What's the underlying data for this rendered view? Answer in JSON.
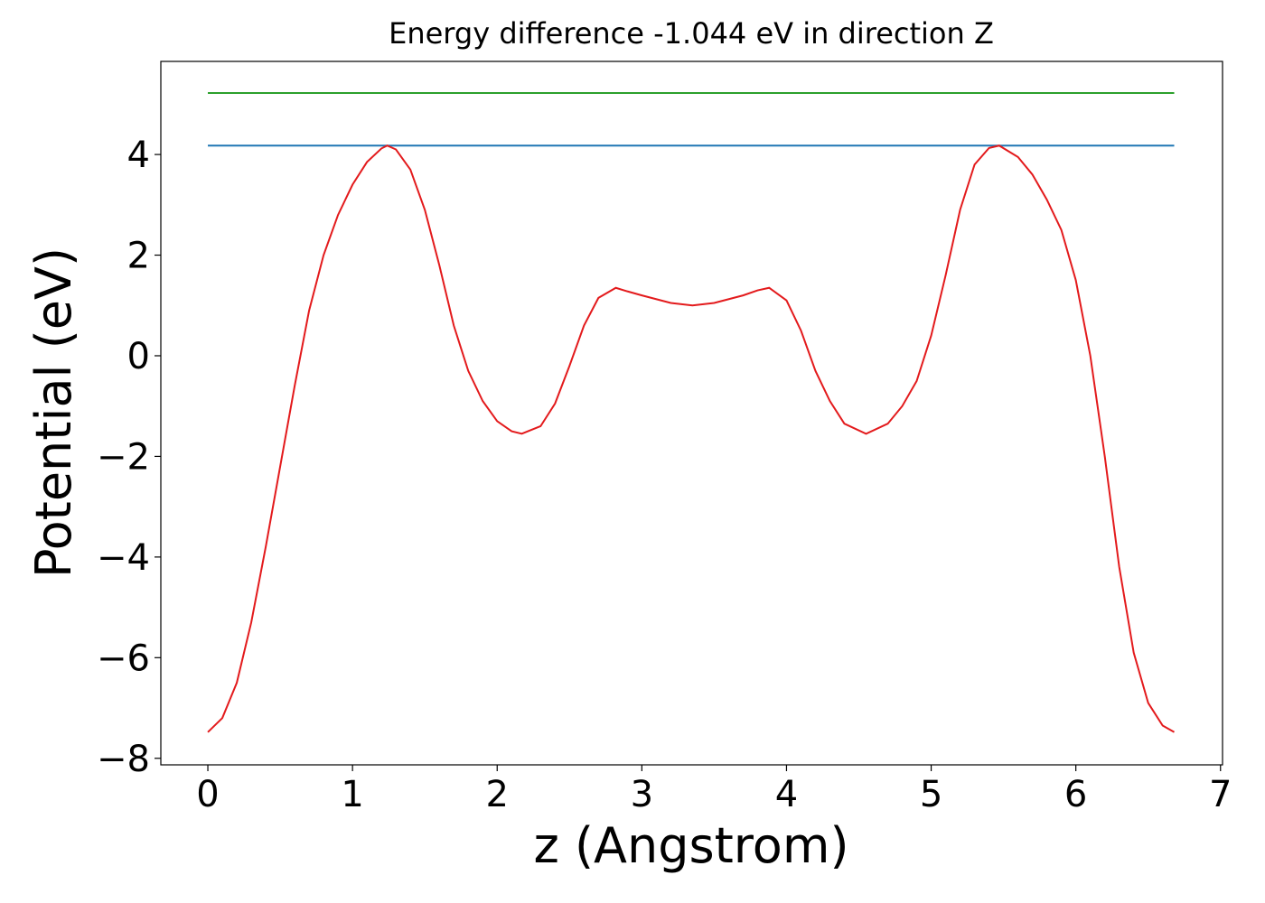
{
  "chart_data": {
    "type": "line",
    "title": "Energy difference -1.044 eV in direction Z",
    "x_label": "z (Angstrom)",
    "y_label": "Potential (eV)",
    "xlim": [
      -0.325,
      7.014
    ],
    "ylim": [
      -8.13,
      5.85
    ],
    "xticks": [
      0,
      1,
      2,
      3,
      4,
      5,
      6,
      7
    ],
    "yticks": [
      {
        "value": -8,
        "label": "−8"
      },
      {
        "value": -6,
        "label": "−6"
      },
      {
        "value": -4,
        "label": "−4"
      },
      {
        "value": -2,
        "label": "−2"
      },
      0,
      2,
      4
    ],
    "series": [
      {
        "color": "#1f77b4",
        "x": [
          0,
          6.68
        ],
        "values": [
          4.177,
          4.177
        ]
      },
      {
        "color": "#2ca02c",
        "x": [
          0,
          6.68
        ],
        "values": [
          5.221,
          5.221
        ]
      },
      {
        "color": "#e31a1c",
        "x": [
          0,
          0.1,
          0.2,
          0.3,
          0.4,
          0.5,
          0.6,
          0.7,
          0.8,
          0.9,
          1.0,
          1.1,
          1.2,
          1.24,
          1.3,
          1.4,
          1.5,
          1.6,
          1.7,
          1.8,
          1.9,
          2.0,
          2.1,
          2.17,
          2.3,
          2.4,
          2.5,
          2.6,
          2.7,
          2.82,
          2.9,
          3.0,
          3.2,
          3.35,
          3.5,
          3.7,
          3.8,
          3.88,
          4.0,
          4.1,
          4.2,
          4.3,
          4.4,
          4.55,
          4.7,
          4.8,
          4.9,
          5.0,
          5.1,
          5.2,
          5.3,
          5.4,
          5.47,
          5.6,
          5.7,
          5.8,
          5.9,
          6.0,
          6.1,
          6.2,
          6.3,
          6.4,
          6.5,
          6.6,
          6.68
        ],
        "values": [
          -7.48,
          -7.2,
          -6.5,
          -5.3,
          -3.8,
          -2.2,
          -0.6,
          0.9,
          2.0,
          2.8,
          3.4,
          3.85,
          4.12,
          4.177,
          4.1,
          3.7,
          2.9,
          1.8,
          0.6,
          -0.3,
          -0.9,
          -1.3,
          -1.5,
          -1.55,
          -1.4,
          -0.95,
          -0.2,
          0.6,
          1.15,
          1.35,
          1.28,
          1.2,
          1.05,
          1.0,
          1.05,
          1.2,
          1.3,
          1.35,
          1.1,
          0.5,
          -0.3,
          -0.9,
          -1.35,
          -1.55,
          -1.35,
          -1.0,
          -0.5,
          0.4,
          1.6,
          2.9,
          3.8,
          4.13,
          4.177,
          3.95,
          3.6,
          3.1,
          2.5,
          1.5,
          0.0,
          -2.0,
          -4.2,
          -5.9,
          -6.9,
          -7.35,
          -7.48
        ]
      }
    ]
  }
}
